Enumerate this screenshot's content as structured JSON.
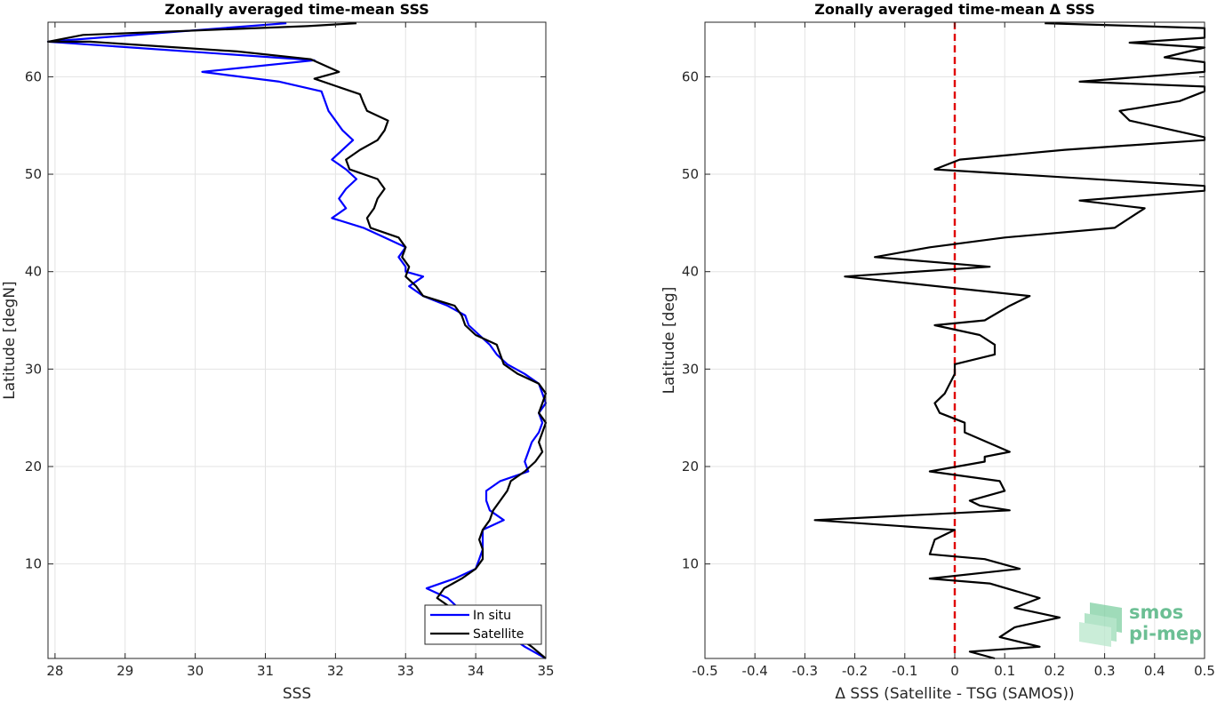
{
  "colors": {
    "in_situ": "#0000ff",
    "satellite": "#000000",
    "zero_line": "#e00000",
    "grid": "#e3e3e3",
    "logo": "#6cbf94"
  },
  "logo": {
    "line1": "smos",
    "line2": "pi-mep"
  },
  "chart_data": [
    {
      "type": "line",
      "title": "Zonally averaged time-mean SSS",
      "xlabel": "SSS",
      "ylabel": "Latitude [degN]",
      "xlim": [
        27.9,
        35
      ],
      "ylim": [
        0.3,
        65.6
      ],
      "xticks": [
        28,
        29,
        30,
        31,
        32,
        33,
        34,
        35
      ],
      "yticks": [
        10,
        20,
        30,
        40,
        50,
        60
      ],
      "grid": true,
      "legend_position": "bottom-right",
      "series": [
        {
          "name": "In situ",
          "color_key": "in_situ",
          "points": [
            [
              31.3,
              65.5
            ],
            [
              27.9,
              63.6
            ],
            [
              31.7,
              61.7
            ],
            [
              30.1,
              60.5
            ],
            [
              31.2,
              59.5
            ],
            [
              31.8,
              58.5
            ],
            [
              31.9,
              56.5
            ],
            [
              32.0,
              55.5
            ],
            [
              32.1,
              54.5
            ],
            [
              32.25,
              53.5
            ],
            [
              32.1,
              52.5
            ],
            [
              31.95,
              51.5
            ],
            [
              32.15,
              50.5
            ],
            [
              32.3,
              49.5
            ],
            [
              32.15,
              48.5
            ],
            [
              32.05,
              47.5
            ],
            [
              32.15,
              46.5
            ],
            [
              31.95,
              45.5
            ],
            [
              32.4,
              44.5
            ],
            [
              32.7,
              43.5
            ],
            [
              33.0,
              42.5
            ],
            [
              32.9,
              41.5
            ],
            [
              33.0,
              40.5
            ],
            [
              33.0,
              40.0
            ],
            [
              33.25,
              39.5
            ],
            [
              33.05,
              38.5
            ],
            [
              33.25,
              37.5
            ],
            [
              33.6,
              36.5
            ],
            [
              33.85,
              35.5
            ],
            [
              33.9,
              34.5
            ],
            [
              34.05,
              33.5
            ],
            [
              34.2,
              32.5
            ],
            [
              34.3,
              31.5
            ],
            [
              34.45,
              30.5
            ],
            [
              34.7,
              29.5
            ],
            [
              34.9,
              28.5
            ],
            [
              34.95,
              27.5
            ],
            [
              35.0,
              26.5
            ],
            [
              34.9,
              25.5
            ],
            [
              34.95,
              24.5
            ],
            [
              34.9,
              23.5
            ],
            [
              34.8,
              22.5
            ],
            [
              34.75,
              21.5
            ],
            [
              34.7,
              20.5
            ],
            [
              34.75,
              19.5
            ],
            [
              34.35,
              18.5
            ],
            [
              34.15,
              17.5
            ],
            [
              34.15,
              16.5
            ],
            [
              34.2,
              15.5
            ],
            [
              34.4,
              14.5
            ],
            [
              34.1,
              13.5
            ],
            [
              34.1,
              12.5
            ],
            [
              34.1,
              11.5
            ],
            [
              34.05,
              10.5
            ],
            [
              34.0,
              9.5
            ],
            [
              33.7,
              8.5
            ],
            [
              33.3,
              7.5
            ],
            [
              33.6,
              6.5
            ],
            [
              33.75,
              5.5
            ],
            [
              33.75,
              4.5
            ],
            [
              34.0,
              3.5
            ],
            [
              34.5,
              2.5
            ],
            [
              34.7,
              1.5
            ],
            [
              35.0,
              0.3
            ]
          ]
        },
        {
          "name": "Satellite",
          "color_key": "satellite",
          "points": [
            [
              32.3,
              65.5
            ],
            [
              31.6,
              65.2
            ],
            [
              28.4,
              64.3
            ],
            [
              27.9,
              63.6
            ],
            [
              28.5,
              63.6
            ],
            [
              30.6,
              62.6
            ],
            [
              31.65,
              61.8
            ],
            [
              32.05,
              60.5
            ],
            [
              31.7,
              59.8
            ],
            [
              32.35,
              58.2
            ],
            [
              32.4,
              57.3
            ],
            [
              32.45,
              56.5
            ],
            [
              32.75,
              55.5
            ],
            [
              32.7,
              54.5
            ],
            [
              32.6,
              53.5
            ],
            [
              32.35,
              52.5
            ],
            [
              32.15,
              51.5
            ],
            [
              32.2,
              50.5
            ],
            [
              32.6,
              49.5
            ],
            [
              32.7,
              48.5
            ],
            [
              32.6,
              47.5
            ],
            [
              32.55,
              46.5
            ],
            [
              32.45,
              45.5
            ],
            [
              32.5,
              44.5
            ],
            [
              32.9,
              43.5
            ],
            [
              33.0,
              42.5
            ],
            [
              32.95,
              41.5
            ],
            [
              33.05,
              40.5
            ],
            [
              33.0,
              39.5
            ],
            [
              33.15,
              38.5
            ],
            [
              33.25,
              37.5
            ],
            [
              33.7,
              36.5
            ],
            [
              33.8,
              35.5
            ],
            [
              33.85,
              34.5
            ],
            [
              34.0,
              33.5
            ],
            [
              34.3,
              32.5
            ],
            [
              34.35,
              31.5
            ],
            [
              34.4,
              30.5
            ],
            [
              34.6,
              29.5
            ],
            [
              34.9,
              28.5
            ],
            [
              35.0,
              27.5
            ],
            [
              34.95,
              26.5
            ],
            [
              34.9,
              25.5
            ],
            [
              35.0,
              24.5
            ],
            [
              34.95,
              23.5
            ],
            [
              34.9,
              22.5
            ],
            [
              34.95,
              21.5
            ],
            [
              34.85,
              20.5
            ],
            [
              34.7,
              19.5
            ],
            [
              34.5,
              18.5
            ],
            [
              34.45,
              17.5
            ],
            [
              34.35,
              16.5
            ],
            [
              34.25,
              15.5
            ],
            [
              34.2,
              14.5
            ],
            [
              34.1,
              13.5
            ],
            [
              34.05,
              12.5
            ],
            [
              34.1,
              11.5
            ],
            [
              34.1,
              10.5
            ],
            [
              34.0,
              9.5
            ],
            [
              33.8,
              8.5
            ],
            [
              33.55,
              7.5
            ],
            [
              33.45,
              6.5
            ],
            [
              33.65,
              5.5
            ],
            [
              33.95,
              4.5
            ],
            [
              34.3,
              3.5
            ],
            [
              34.6,
              2.5
            ],
            [
              34.8,
              1.5
            ],
            [
              35.0,
              0.3
            ]
          ]
        }
      ]
    },
    {
      "type": "line",
      "title": "Zonally averaged time-mean Δ SSS",
      "xlabel": "Δ SSS (Satellite - TSG (SAMOS))",
      "ylabel": "Latitude [deg]",
      "xlim": [
        -0.5,
        0.5
      ],
      "ylim": [
        0.3,
        65.6
      ],
      "xticks": [
        -0.5,
        -0.4,
        -0.3,
        -0.2,
        -0.1,
        0,
        0.1,
        0.2,
        0.3,
        0.4,
        0.5
      ],
      "xtick_labels": [
        "-0.5",
        "-0.4",
        "-0.3",
        "-0.2",
        "-0.1",
        "0",
        "0.1",
        "0.2",
        "0.3",
        "0.4",
        "0.5"
      ],
      "yticks": [
        10,
        20,
        30,
        40,
        50,
        60
      ],
      "grid": true,
      "reference_line_x": 0,
      "series": [
        {
          "color_key": "satellite",
          "points": [
            [
              0.18,
              65.5
            ],
            [
              0.5,
              65.0
            ],
            [
              0.5,
              64.0
            ],
            [
              0.35,
              63.5
            ],
            [
              0.5,
              63.0
            ],
            [
              0.42,
              62.0
            ],
            [
              0.5,
              61.5
            ],
            [
              0.5,
              60.5
            ],
            [
              0.25,
              59.5
            ],
            [
              0.5,
              59.0
            ],
            [
              0.5,
              58.5
            ],
            [
              0.45,
              57.5
            ],
            [
              0.33,
              56.5
            ],
            [
              0.35,
              55.5
            ],
            [
              0.5,
              53.8
            ],
            [
              0.5,
              53.5
            ],
            [
              0.22,
              52.5
            ],
            [
              0.01,
              51.5
            ],
            [
              -0.04,
              50.5
            ],
            [
              0.5,
              48.8
            ],
            [
              0.5,
              48.3
            ],
            [
              0.25,
              47.3
            ],
            [
              0.38,
              46.5
            ],
            [
              0.32,
              44.5
            ],
            [
              0.1,
              43.5
            ],
            [
              -0.05,
              42.5
            ],
            [
              -0.16,
              41.5
            ],
            [
              0.07,
              40.5
            ],
            [
              -0.22,
              39.5
            ],
            [
              0.15,
              37.5
            ],
            [
              0.11,
              36.5
            ],
            [
              0.06,
              35.0
            ],
            [
              -0.04,
              34.5
            ],
            [
              0.05,
              33.5
            ],
            [
              0.08,
              32.5
            ],
            [
              0.08,
              31.5
            ],
            [
              0.0,
              30.5
            ],
            [
              0.0,
              29.5
            ],
            [
              -0.01,
              28.5
            ],
            [
              -0.02,
              27.5
            ],
            [
              -0.04,
              26.5
            ],
            [
              -0.03,
              25.5
            ],
            [
              0.02,
              24.5
            ],
            [
              0.02,
              23.5
            ],
            [
              0.11,
              21.5
            ],
            [
              0.06,
              21.0
            ],
            [
              0.06,
              20.5
            ],
            [
              -0.05,
              19.5
            ],
            [
              0.09,
              18.5
            ],
            [
              0.1,
              17.5
            ],
            [
              0.03,
              16.5
            ],
            [
              0.05,
              16.0
            ],
            [
              0.11,
              15.5
            ],
            [
              -0.28,
              14.5
            ],
            [
              0.0,
              13.5
            ],
            [
              -0.04,
              12.5
            ],
            [
              -0.05,
              11.0
            ],
            [
              0.06,
              10.5
            ],
            [
              0.13,
              9.5
            ],
            [
              -0.05,
              8.5
            ],
            [
              0.07,
              8.0
            ],
            [
              0.17,
              6.5
            ],
            [
              0.12,
              5.5
            ],
            [
              0.21,
              4.5
            ],
            [
              0.12,
              3.5
            ],
            [
              0.09,
              2.5
            ],
            [
              0.17,
              1.5
            ],
            [
              0.03,
              1.0
            ],
            [
              0.08,
              0.3
            ]
          ]
        }
      ]
    }
  ]
}
